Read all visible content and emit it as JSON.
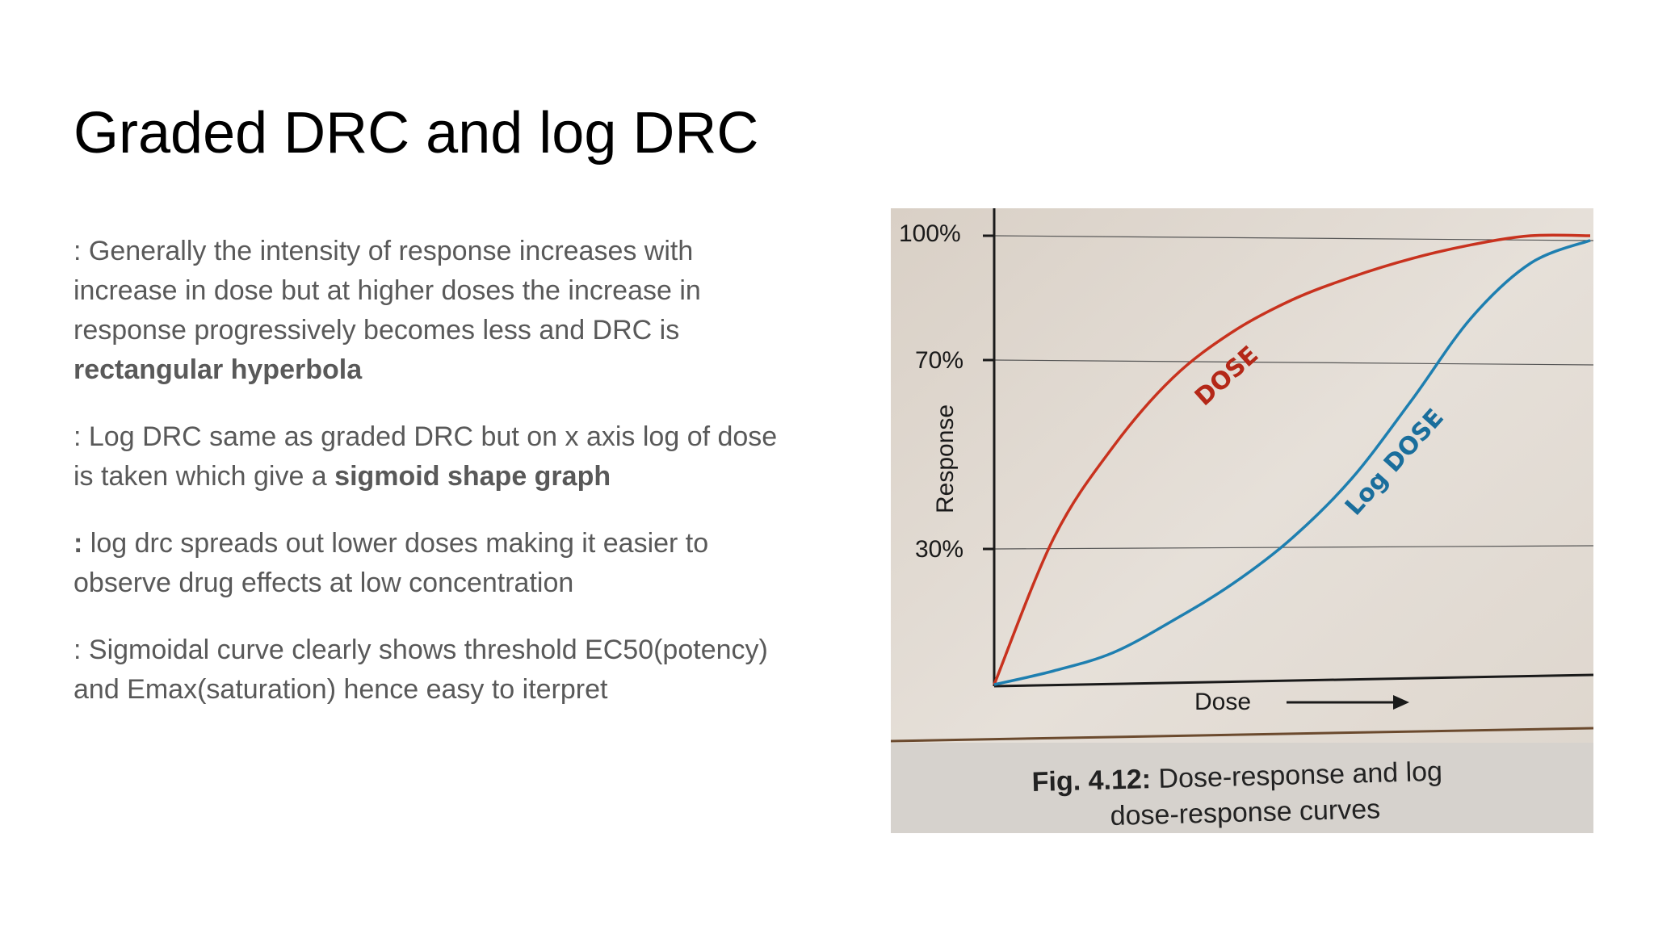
{
  "slide": {
    "title": "Graded DRC and log DRC",
    "paragraphs": [
      {
        "prefix": ": Generally the intensity of response increases with increase in  dose but at higher doses the increase in response progressively becomes less and DRC is ",
        "bold": "rectangular hyperbola",
        "suffix": ""
      },
      {
        "prefix": ": Log DRC same as graded DRC but on x axis  log of dose is taken which give a ",
        "bold": "sigmoid shape graph",
        "suffix": ""
      },
      {
        "prefix_bold": ":",
        "prefix": " log drc spreads out lower doses making it easier to observe drug effects at low concentration"
      },
      {
        "prefix": ": Sigmoidal curve clearly shows threshold EC50(potency) and  Emax(saturation) hence easy to iterpret"
      }
    ]
  },
  "figure": {
    "ylabel": "Response",
    "xlabel": "Dose",
    "yticks": [
      "100%",
      "70%",
      "30%"
    ],
    "curve_labels": {
      "dose": "DOSE",
      "log_dose": "Log DOSE"
    },
    "caption_bold": "Fig. 4.12:",
    "caption_line1": " Dose-response and log",
    "caption_line2": "dose-response curves",
    "colors": {
      "dose_curve": "#c8321e",
      "log_dose_curve": "#1e7fb0",
      "paper": "#e3ddd6",
      "axis": "#1a1a1a"
    }
  },
  "chart_data": {
    "type": "line",
    "xlabel": "Dose",
    "ylabel": "Response",
    "ylim": [
      0,
      100
    ],
    "yticks": [
      "100%",
      "70%",
      "30%"
    ],
    "grid": true,
    "series": [
      {
        "name": "DOSE",
        "x": [
          0,
          0.1,
          0.2,
          0.3,
          0.4,
          0.5,
          0.6,
          0.7,
          0.8,
          0.9,
          1.0
        ],
        "values": [
          0,
          32,
          52,
          67,
          77,
          84,
          89,
          93,
          96,
          98,
          98
        ]
      },
      {
        "name": "Log DOSE",
        "x": [
          0,
          0.1,
          0.2,
          0.3,
          0.4,
          0.5,
          0.6,
          0.7,
          0.8,
          0.9,
          1.0
        ],
        "values": [
          0,
          3,
          7,
          14,
          22,
          32,
          45,
          62,
          80,
          92,
          97
        ]
      }
    ]
  }
}
